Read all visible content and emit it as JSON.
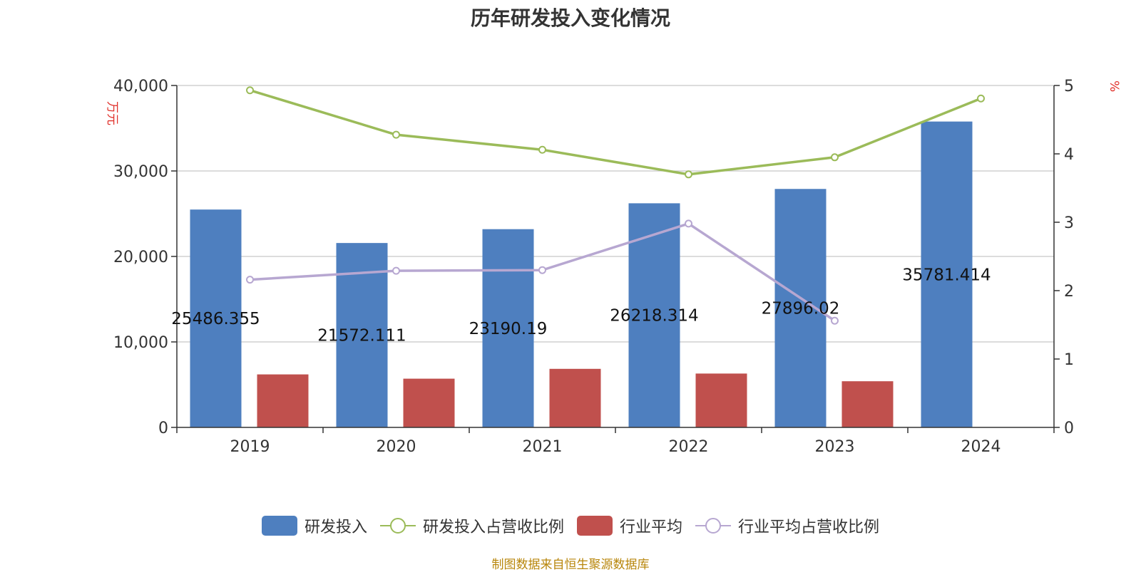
{
  "title": "历年研发投入变化情况",
  "source": "制图数据来自恒生聚源数据库",
  "colors": {
    "rd_bar": "#4e7fbf",
    "industry_bar": "#c0504d",
    "rd_ratio_line": "#9bbb59",
    "industry_ratio_line": "#b7a7d1",
    "grid": "#c8c8c8",
    "axis": "#333333",
    "unit": "#e0302a",
    "source": "#b8860b"
  },
  "chart_data": {
    "type": "bar",
    "categories": [
      "2019",
      "2020",
      "2021",
      "2022",
      "2023",
      "2024"
    ],
    "y_left": {
      "unit": "万元",
      "ylim": [
        0,
        40000
      ],
      "ticks": [
        "0",
        "10,000",
        "20,000",
        "30,000",
        "40,000"
      ],
      "tick_values": [
        0,
        10000,
        20000,
        30000,
        40000
      ]
    },
    "y_right": {
      "unit": "%",
      "ylim": [
        0,
        5
      ],
      "ticks": [
        "0",
        "1",
        "2",
        "3",
        "4",
        "5"
      ],
      "tick_values": [
        0,
        1,
        2,
        3,
        4,
        5
      ]
    },
    "grid": true,
    "legend_position": "bottom",
    "series": [
      {
        "name": "研发投入",
        "type": "bar",
        "axis": "left",
        "values": [
          25486.355,
          21572.111,
          23190.19,
          26218.314,
          27896.02,
          35781.414
        ],
        "labels": [
          "25486.355",
          "21572.111",
          "23190.19",
          "26218.314",
          "27896.02",
          "35781.414"
        ]
      },
      {
        "name": "研发投入占营收比例",
        "type": "line",
        "axis": "right",
        "values": [
          4.93,
          4.28,
          4.06,
          3.7,
          3.95,
          4.81
        ]
      },
      {
        "name": "行业平均",
        "type": "bar",
        "axis": "left",
        "values": [
          6200,
          5700,
          6850,
          6300,
          5400,
          null
        ]
      },
      {
        "name": "行业平均占营收比例",
        "type": "line",
        "axis": "right",
        "values": [
          2.16,
          2.29,
          2.3,
          2.98,
          1.56,
          null
        ]
      }
    ]
  }
}
